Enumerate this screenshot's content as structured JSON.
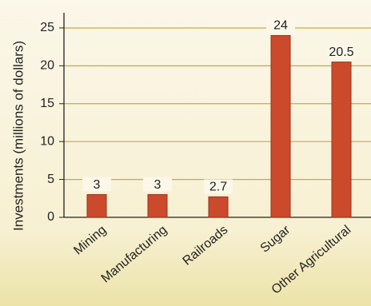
{
  "chart_data": {
    "type": "bar",
    "y_label": "Investments (millions of dollars)",
    "categories": [
      "Mining",
      "Manufacturing",
      "Railroads",
      "Sugar",
      "Other Agricultural"
    ],
    "values": [
      3,
      3,
      2.7,
      24,
      20.5
    ],
    "color": "#cc4a2c",
    "ylim": [
      0,
      27
    ],
    "yticks": [
      0,
      5,
      10,
      15,
      20,
      25
    ],
    "grid": true
  }
}
